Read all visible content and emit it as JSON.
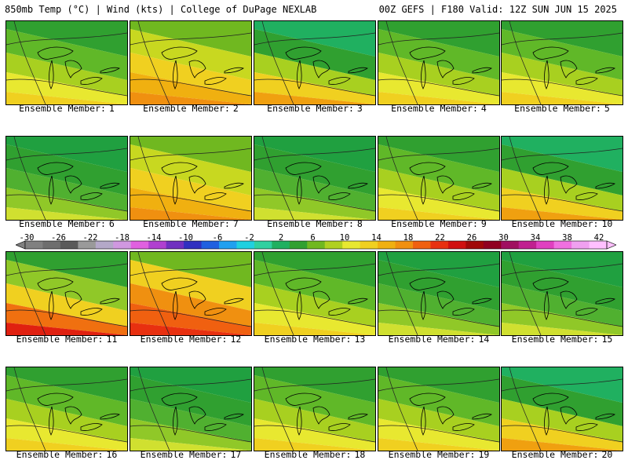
{
  "header": {
    "left": "850mb Temp (°C) | Wind (kts) | College of DuPage NEXLAB",
    "right": "00Z GEFS | F180 Valid: 12Z SUN JUN 15 2025"
  },
  "caption_prefix": "Ensemble Member:",
  "members": [
    {
      "number": "1",
      "dominant": "yellow-green"
    },
    {
      "number": "2",
      "dominant": "yellow-orange"
    },
    {
      "number": "3",
      "dominant": "orange-green"
    },
    {
      "number": "4",
      "dominant": "yellow-green"
    },
    {
      "number": "5",
      "dominant": "yellow-green"
    },
    {
      "number": "6",
      "dominant": "green"
    },
    {
      "number": "7",
      "dominant": "yellow-orange"
    },
    {
      "number": "8",
      "dominant": "green"
    },
    {
      "number": "9",
      "dominant": "yellow-green"
    },
    {
      "number": "10",
      "dominant": "orange-green"
    },
    {
      "number": "11",
      "dominant": "red-green"
    },
    {
      "number": "12",
      "dominant": "red-orange"
    },
    {
      "number": "13",
      "dominant": "yellow-green"
    },
    {
      "number": "14",
      "dominant": "green"
    },
    {
      "number": "15",
      "dominant": "green"
    },
    {
      "number": "16",
      "dominant": "yellow-green"
    },
    {
      "number": "17",
      "dominant": "green"
    },
    {
      "number": "18",
      "dominant": "yellow-green"
    },
    {
      "number": "19",
      "dominant": "yellow-green"
    },
    {
      "number": "20",
      "dominant": "orange-green"
    }
  ],
  "colorbar": {
    "labels": [
      "-30",
      "-26",
      "-22",
      "-18",
      "-14",
      "-10",
      "-6",
      "-2",
      "2",
      "6",
      "10",
      "14",
      "18",
      "22",
      "26",
      "30",
      "34",
      "38",
      "42"
    ],
    "colors": [
      "#808080",
      "#6e6e6e",
      "#5a5a5a",
      "#9a9a9a",
      "#b4a8c8",
      "#d098e0",
      "#e060e0",
      "#b040d0",
      "#7030c0",
      "#3030c0",
      "#2060e0",
      "#20a0f0",
      "#20d0e0",
      "#30d0a0",
      "#20b060",
      "#30a030",
      "#70b820",
      "#b0d020",
      "#e8e830",
      "#f0d020",
      "#f0b010",
      "#f09010",
      "#f06010",
      "#e83010",
      "#d01010",
      "#a00808",
      "#900020",
      "#a01060",
      "#c02090",
      "#e040c0",
      "#f070e0",
      "#f0a0f0",
      "#ffc0ff"
    ]
  }
}
